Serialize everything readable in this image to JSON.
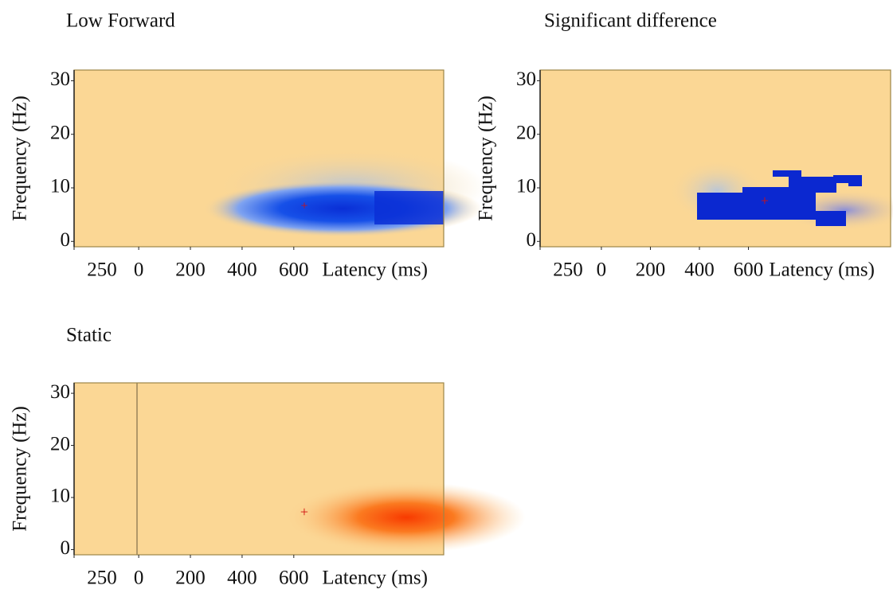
{
  "chart_data": [
    {
      "type": "heatmap",
      "title": "Low Forward",
      "xlabel": "Latency (ms)",
      "ylabel": "Frequency (Hz)",
      "xlim": [
        -250,
        1180
      ],
      "ylim": [
        -1,
        32
      ],
      "xticks": [
        {
          "value": -250,
          "label": "250"
        },
        0,
        200,
        400,
        600
      ],
      "yticks": [
        0,
        10,
        20,
        30
      ]
    },
    {
      "type": "heatmap",
      "title": "Significant difference",
      "xlabel": "Latency (ms)",
      "ylabel": "Frequency (Hz)",
      "xlim": [
        -250,
        1180
      ],
      "ylim": [
        -1,
        32
      ],
      "xticks": [
        {
          "value": -250,
          "label": "250"
        },
        0,
        200,
        400,
        600
      ],
      "yticks": [
        0,
        10,
        20,
        30
      ]
    },
    {
      "type": "heatmap",
      "title": "Static",
      "xlabel": "Latency (ms)",
      "ylabel": "Frequency (Hz)",
      "xlim": [
        -250,
        1180
      ],
      "ylim": [
        -1,
        32
      ],
      "xticks": [
        {
          "value": -250,
          "label": "250"
        },
        0,
        200,
        400,
        600
      ],
      "yticks": [
        0,
        10,
        20,
        30
      ]
    }
  ]
}
